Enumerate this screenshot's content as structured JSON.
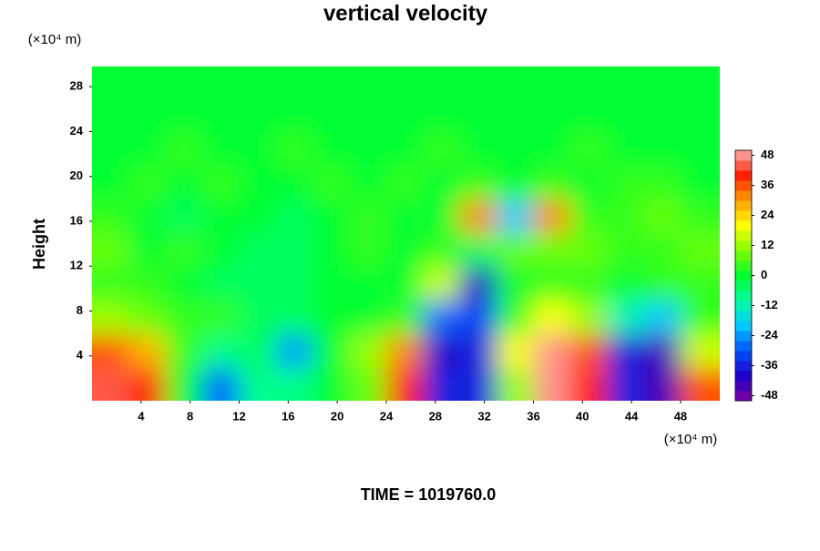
{
  "chart_data": {
    "type": "contour",
    "title": "vertical velocity",
    "ylabel": "Height",
    "yunit": "(×10⁴ m)",
    "xunit": "(×10⁴ m)",
    "footer": "TIME = 1019760.0",
    "xlim": [
      0,
      51.2
    ],
    "ylim": [
      0,
      29.8
    ],
    "xticks": [
      4,
      8,
      12,
      16,
      20,
      24,
      28,
      32,
      36,
      40,
      44,
      48
    ],
    "yticks": [
      4,
      8,
      12,
      16,
      20,
      24,
      28
    ],
    "x": [
      1.5,
      4.5,
      7.5,
      10.5,
      13.5,
      16.5,
      19.5,
      22.5,
      25.5,
      28.5,
      31.5,
      34.5,
      37.5,
      40.5,
      43.5,
      46.5,
      49.5
    ],
    "y": [
      1.5,
      4.5,
      7.5,
      10.5,
      13.5,
      16.5,
      19.5,
      22.5,
      25.5,
      28.5
    ],
    "z": [
      [
        44,
        38,
        0,
        -30,
        -10,
        -8,
        -2,
        6,
        40,
        -36,
        -38,
        10,
        46,
        40,
        -36,
        -46,
        36
      ],
      [
        36,
        28,
        4,
        -10,
        -4,
        -24,
        0,
        10,
        30,
        -40,
        -36,
        20,
        48,
        36,
        -38,
        -44,
        14
      ],
      [
        10,
        8,
        4,
        2,
        -4,
        -6,
        -2,
        0,
        4,
        -30,
        -34,
        4,
        20,
        10,
        -14,
        -20,
        2
      ],
      [
        4,
        2,
        0,
        -4,
        -6,
        -4,
        -2,
        0,
        -2,
        14,
        -40,
        0,
        2,
        4,
        0,
        2,
        4
      ],
      [
        8,
        0,
        4,
        -2,
        -4,
        -6,
        -2,
        4,
        0,
        2,
        -4,
        8,
        6,
        6,
        4,
        4,
        6
      ],
      [
        4,
        0,
        -4,
        -2,
        -2,
        -4,
        0,
        4,
        0,
        0,
        30,
        -20,
        30,
        4,
        2,
        6,
        4
      ],
      [
        0,
        2,
        0,
        2,
        0,
        0,
        2,
        0,
        2,
        0,
        2,
        0,
        2,
        0,
        2,
        2,
        0
      ],
      [
        0,
        0,
        2,
        0,
        0,
        2,
        0,
        0,
        0,
        2,
        0,
        0,
        0,
        2,
        0,
        0,
        0
      ],
      [
        0,
        0,
        0,
        0,
        0,
        0,
        0,
        0,
        0,
        0,
        0,
        0,
        0,
        0,
        0,
        0,
        0
      ],
      [
        0,
        0,
        0,
        0,
        0,
        0,
        0,
        0,
        0,
        0,
        0,
        0,
        0,
        0,
        0,
        0,
        0
      ]
    ],
    "clim": [
      -50,
      50
    ],
    "levels_step": 4,
    "colormap": [
      "#8000a0",
      "#2000c8",
      "#0050ff",
      "#00c8ff",
      "#00ffa0",
      "#00ff30",
      "#80ff00",
      "#ffff00",
      "#ffa000",
      "#ff2000",
      "#ffb0b0"
    ],
    "cticks": [
      48,
      36,
      24,
      12,
      0,
      -12,
      -24,
      -36,
      -48
    ]
  }
}
